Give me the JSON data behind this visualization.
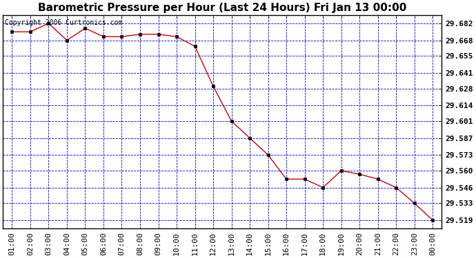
{
  "title": "Barometric Pressure per Hour (Last 24 Hours) Fri Jan 13 00:00",
  "copyright": "Copyright 2006 Curtronics.com",
  "x_labels": [
    "01:00",
    "02:00",
    "03:00",
    "04:00",
    "05:00",
    "06:00",
    "07:00",
    "08:00",
    "09:00",
    "10:00",
    "11:00",
    "12:00",
    "13:00",
    "14:00",
    "15:00",
    "16:00",
    "17:00",
    "18:00",
    "19:00",
    "20:00",
    "21:00",
    "22:00",
    "23:00",
    "00:00"
  ],
  "y_values": [
    29.675,
    29.675,
    29.682,
    29.668,
    29.678,
    29.671,
    29.671,
    29.673,
    29.673,
    29.671,
    29.663,
    29.63,
    29.601,
    29.587,
    29.573,
    29.553,
    29.553,
    29.546,
    29.56,
    29.557,
    29.553,
    29.546,
    29.533,
    29.519
  ],
  "y_ticks": [
    29.519,
    29.533,
    29.546,
    29.56,
    29.573,
    29.587,
    29.601,
    29.614,
    29.628,
    29.641,
    29.655,
    29.668,
    29.682
  ],
  "ylim_min": 29.512,
  "ylim_max": 29.689,
  "line_color": "#cc0000",
  "marker_color": "#000000",
  "bg_color": "#ffffff",
  "grid_color": "#0000cc",
  "border_color": "#000000",
  "title_fontsize": 11,
  "copyright_fontsize": 7,
  "tick_fontsize": 8,
  "marker_size": 2.5
}
